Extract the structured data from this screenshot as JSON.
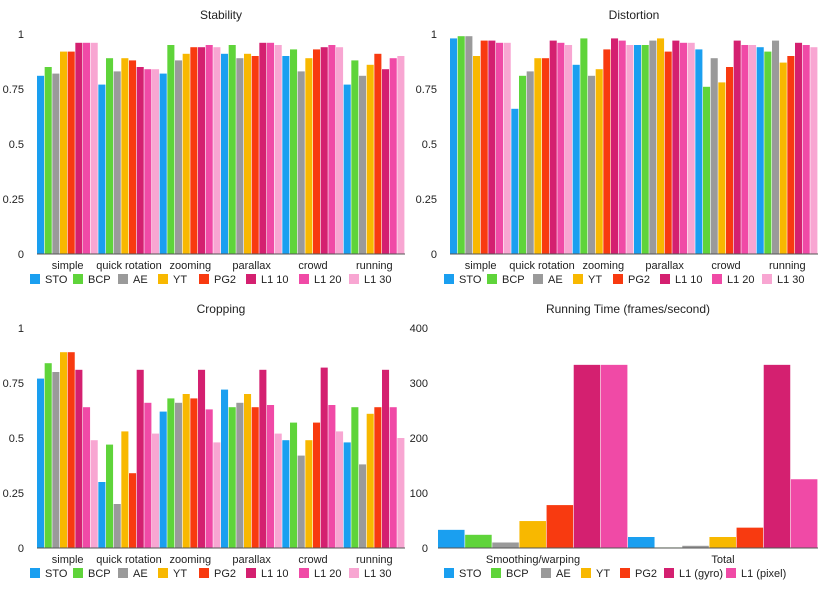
{
  "colors": {
    "STO": "#1a9ff0",
    "BCP": "#5fd43a",
    "AE": "#9a9a9a",
    "YT": "#f8b800",
    "PG2": "#f83a10",
    "L1 10": "#d42070",
    "L1 20": "#f04aa6",
    "L1 30": "#f8a6d2",
    "L1 (gyro)": "#d42070",
    "L1 (pixel)": "#f04aa6"
  },
  "chart_data": [
    {
      "type": "bar",
      "title": "Stability",
      "categories": [
        "simple",
        "quick rotation",
        "zooming",
        "parallax",
        "crowd",
        "running"
      ],
      "ylim": [
        0,
        1
      ],
      "yticks": [
        "0",
        "0.25",
        "0.5",
        "0.75",
        "1"
      ],
      "ytick_values": [
        0,
        0.25,
        0.5,
        0.75,
        1
      ],
      "series": [
        {
          "name": "STO",
          "values": [
            0.81,
            0.77,
            0.82,
            0.91,
            0.9,
            0.77
          ]
        },
        {
          "name": "BCP",
          "values": [
            0.85,
            0.89,
            0.95,
            0.95,
            0.93,
            0.88
          ]
        },
        {
          "name": "AE",
          "values": [
            0.82,
            0.83,
            0.88,
            0.89,
            0.83,
            0.81
          ]
        },
        {
          "name": "YT",
          "values": [
            0.92,
            0.89,
            0.91,
            0.91,
            0.89,
            0.86
          ]
        },
        {
          "name": "PG2",
          "values": [
            0.92,
            0.88,
            0.94,
            0.9,
            0.93,
            0.91
          ]
        },
        {
          "name": "L1 10",
          "values": [
            0.96,
            0.85,
            0.94,
            0.96,
            0.94,
            0.84
          ]
        },
        {
          "name": "L1 20",
          "values": [
            0.96,
            0.84,
            0.95,
            0.96,
            0.95,
            0.89
          ]
        },
        {
          "name": "L1 30",
          "values": [
            0.96,
            0.84,
            0.94,
            0.95,
            0.94,
            0.9
          ]
        }
      ]
    },
    {
      "type": "bar",
      "title": "Distortion",
      "categories": [
        "simple",
        "quick rotation",
        "zooming",
        "parallax",
        "crowd",
        "running"
      ],
      "ylim": [
        0,
        1
      ],
      "yticks": [
        "0",
        "0.25",
        "0.5",
        "0.75",
        "1"
      ],
      "ytick_values": [
        0,
        0.25,
        0.5,
        0.75,
        1
      ],
      "series": [
        {
          "name": "STO",
          "values": [
            0.98,
            0.66,
            0.86,
            0.95,
            0.93,
            0.94
          ]
        },
        {
          "name": "BCP",
          "values": [
            0.99,
            0.81,
            0.98,
            0.95,
            0.76,
            0.92
          ]
        },
        {
          "name": "AE",
          "values": [
            0.99,
            0.83,
            0.81,
            0.97,
            0.89,
            0.97
          ]
        },
        {
          "name": "YT",
          "values": [
            0.9,
            0.89,
            0.84,
            0.98,
            0.78,
            0.87
          ]
        },
        {
          "name": "PG2",
          "values": [
            0.97,
            0.89,
            0.93,
            0.92,
            0.85,
            0.9
          ]
        },
        {
          "name": "L1 10",
          "values": [
            0.97,
            0.97,
            0.98,
            0.97,
            0.97,
            0.96
          ]
        },
        {
          "name": "L1 20",
          "values": [
            0.96,
            0.96,
            0.97,
            0.96,
            0.95,
            0.95
          ]
        },
        {
          "name": "L1 30",
          "values": [
            0.96,
            0.95,
            0.95,
            0.96,
            0.95,
            0.94
          ]
        }
      ]
    },
    {
      "type": "bar",
      "title": "Cropping",
      "categories": [
        "simple",
        "quick rotation",
        "zooming",
        "parallax",
        "crowd",
        "running"
      ],
      "ylim": [
        0,
        1
      ],
      "yticks": [
        "0",
        "0.25",
        "0.5",
        "0.75",
        "1"
      ],
      "ytick_values": [
        0,
        0.25,
        0.5,
        0.75,
        1
      ],
      "series": [
        {
          "name": "STO",
          "values": [
            0.77,
            0.3,
            0.62,
            0.72,
            0.49,
            0.48
          ]
        },
        {
          "name": "BCP",
          "values": [
            0.84,
            0.47,
            0.68,
            0.64,
            0.57,
            0.64
          ]
        },
        {
          "name": "AE",
          "values": [
            0.8,
            0.2,
            0.66,
            0.66,
            0.42,
            0.38
          ]
        },
        {
          "name": "YT",
          "values": [
            0.89,
            0.53,
            0.7,
            0.7,
            0.49,
            0.61
          ]
        },
        {
          "name": "PG2",
          "values": [
            0.89,
            0.34,
            0.68,
            0.64,
            0.57,
            0.64
          ]
        },
        {
          "name": "L1 10",
          "values": [
            0.81,
            0.81,
            0.81,
            0.81,
            0.82,
            0.81
          ]
        },
        {
          "name": "L1 20",
          "values": [
            0.64,
            0.66,
            0.63,
            0.65,
            0.65,
            0.64
          ]
        },
        {
          "name": "L1 30",
          "values": [
            0.49,
            0.52,
            0.48,
            0.52,
            0.53,
            0.5
          ]
        }
      ]
    },
    {
      "type": "bar",
      "title": "Running Time (frames/second)",
      "categories": [
        "Smoothing/warping",
        "Total"
      ],
      "ylim": [
        0,
        400
      ],
      "yticks": [
        "0",
        "100",
        "200",
        "300",
        "400"
      ],
      "ytick_values": [
        0,
        100,
        200,
        300,
        400
      ],
      "series": [
        {
          "name": "STO",
          "values": [
            33,
            20
          ]
        },
        {
          "name": "BCP",
          "values": [
            24,
            1
          ]
        },
        {
          "name": "AE",
          "values": [
            10,
            4
          ]
        },
        {
          "name": "YT",
          "values": [
            49,
            20
          ]
        },
        {
          "name": "PG2",
          "values": [
            78,
            37
          ]
        },
        {
          "name": "L1 (gyro)",
          "values": [
            333,
            333
          ]
        },
        {
          "name": "L1 (pixel)",
          "values": [
            333,
            125
          ]
        }
      ]
    }
  ]
}
